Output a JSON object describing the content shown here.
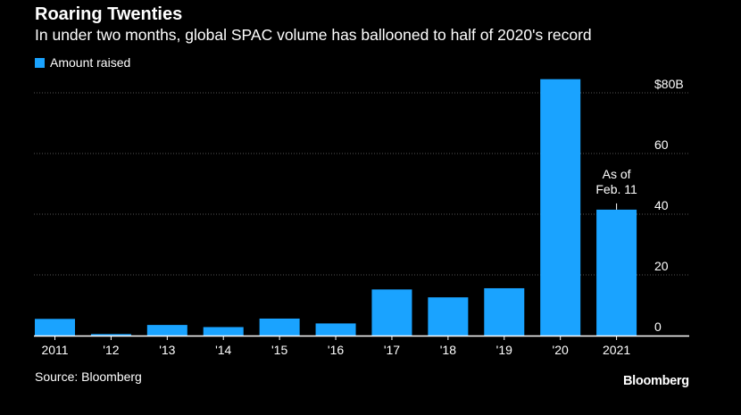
{
  "chart_data": {
    "type": "bar",
    "title": "Roaring Twenties",
    "subtitle": "In under two months, global SPAC volume has ballooned to half of 2020's record",
    "series": [
      {
        "name": "Amount raised",
        "color": "#1aa3ff",
        "values": [
          5.5,
          0.5,
          3.5,
          2.8,
          5.6,
          4.0,
          15.2,
          12.6,
          15.6,
          84.5,
          41.5
        ]
      }
    ],
    "categories": [
      "2011",
      "'12",
      "'13",
      "'14",
      "'15",
      "'16",
      "'17",
      "'18",
      "'19",
      "'20",
      "2021"
    ],
    "ylim": [
      0,
      85
    ],
    "yticks": [
      0,
      20,
      40,
      60,
      80
    ],
    "ytick_labels": [
      "0",
      "20",
      "40",
      "60",
      "$80B"
    ],
    "y_axis_side": "right",
    "grid": true,
    "legend_position": "top-left",
    "annotation": {
      "category": "2021",
      "lines": [
        "As of",
        "Feb. 11"
      ]
    }
  },
  "source": "Source: Bloomberg",
  "brand": "Bloomberg",
  "colors": {
    "background": "#000000",
    "bar": "#1aa3ff",
    "grid": "#555555",
    "text": "#ffffff"
  }
}
